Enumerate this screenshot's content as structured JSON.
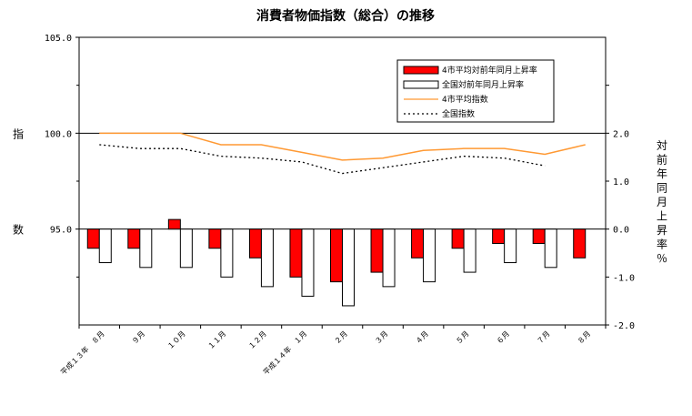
{
  "chart_data": {
    "type": "bar",
    "title": "消費者物価指数（総合）の推移",
    "categories": [
      "平成１３年　８月",
      "９月",
      "１０月",
      "１１月",
      "１２月",
      "平成１４年　１月",
      "２月",
      "３月",
      "４月",
      "５月",
      "６月",
      "７月",
      "８月"
    ],
    "left_axis": {
      "label": "指数",
      "ylim": [
        90.0,
        105.0
      ],
      "ticks": [
        "105.0",
        "100.0",
        "95.0"
      ]
    },
    "right_axis": {
      "label": "対前年同月上昇率％",
      "ylim": [
        -2.0,
        4.0
      ],
      "ticks": [
        "2.0",
        "1.0",
        "0.0",
        "-1.0",
        "-2.0"
      ]
    },
    "series": [
      {
        "name": "4市平均対前年同月上昇率",
        "kind": "bar",
        "axis": "right",
        "color": "#ff0000",
        "values": [
          -0.4,
          -0.4,
          0.2,
          -0.4,
          -0.6,
          -1.0,
          -1.1,
          -0.9,
          -0.6,
          -0.4,
          -0.3,
          -0.3,
          -0.6
        ]
      },
      {
        "name": "全国対前年同月上昇率",
        "kind": "bar",
        "axis": "right",
        "color": "#ffffff",
        "values": [
          -0.7,
          -0.8,
          -0.8,
          -1.0,
          -1.2,
          -1.4,
          -1.6,
          -1.2,
          -1.1,
          -0.9,
          -0.7,
          -0.8,
          null
        ]
      },
      {
        "name": "4市平均指数",
        "kind": "line",
        "axis": "left",
        "color": "#ff9933",
        "values": [
          100.0,
          100.0,
          100.0,
          99.4,
          99.4,
          99.0,
          98.6,
          98.7,
          99.1,
          99.2,
          99.2,
          98.9,
          99.4
        ]
      },
      {
        "name": "全国指数",
        "kind": "line",
        "axis": "left",
        "color": "#000000",
        "values": [
          99.4,
          99.2,
          99.2,
          98.8,
          98.7,
          98.5,
          97.9,
          98.2,
          98.5,
          98.8,
          98.7,
          98.3,
          null
        ]
      }
    ],
    "legend_position": "top-right",
    "grid": false
  }
}
